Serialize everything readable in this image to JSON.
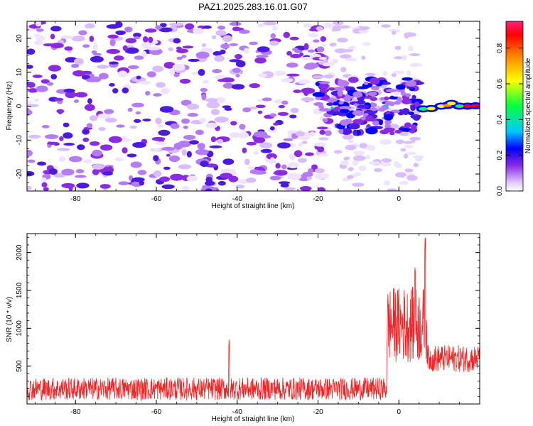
{
  "figure": {
    "title": "PAZ1.2025.283.16.01.G07"
  },
  "chart_data": [
    {
      "type": "heatmap",
      "title": "PAZ1.2025.283.16.01.G07",
      "xlabel": "Height of straight line (km)",
      "ylabel": "Frequency (Hz)",
      "xlim": [
        -92,
        20
      ],
      "ylim": [
        -25,
        25
      ],
      "xticks": [
        -80,
        -60,
        -40,
        -20,
        0
      ],
      "yticks": [
        -20,
        -10,
        0,
        10,
        20
      ],
      "colorbar": {
        "label": "Normalized spectral amplitude",
        "range": [
          0.0,
          0.95
        ],
        "ticks": [
          0.0,
          0.2,
          0.4,
          0.6,
          0.8
        ]
      },
      "description_regions": [
        {
          "x_range": [
            -92,
            -20
          ],
          "y_range": [
            -25,
            25
          ],
          "amplitude": 0.1,
          "pattern": "scattered noise"
        },
        {
          "x_range": [
            -20,
            5
          ],
          "y_range": [
            -8,
            8
          ],
          "amplitude": 0.2,
          "pattern": "concentrated near 0 Hz"
        },
        {
          "x_range": [
            5,
            20
          ],
          "y_range": [
            -2,
            2
          ],
          "amplitude": 0.9,
          "pattern": "strong signal near 0 Hz"
        }
      ]
    },
    {
      "type": "line",
      "title": "",
      "xlabel": "Height of straight line (km)",
      "ylabel": "SNR (10 * v/v)",
      "xlim": [
        -92,
        20
      ],
      "ylim": [
        0,
        2250
      ],
      "xticks": [
        -80,
        -60,
        -40,
        -20,
        0
      ],
      "yticks": [
        500,
        1000,
        1500,
        2000
      ],
      "series_color": "#e8282a",
      "segments": [
        {
          "x_range": [
            -92,
            -3
          ],
          "base": 200,
          "spread": 150
        },
        {
          "x_range": [
            -3,
            7
          ],
          "base": 1050,
          "spread": 500
        },
        {
          "x_range": [
            7,
            20
          ],
          "base": 600,
          "spread": 180
        }
      ],
      "peaks": [
        {
          "x": -42,
          "y": 850
        },
        {
          "x": 6.5,
          "y": 2240
        },
        {
          "x": 4,
          "y": 1800
        }
      ]
    }
  ]
}
